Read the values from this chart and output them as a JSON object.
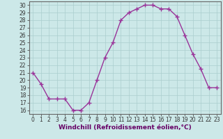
{
  "x": [
    0,
    1,
    2,
    3,
    4,
    5,
    6,
    7,
    8,
    9,
    10,
    11,
    12,
    13,
    14,
    15,
    16,
    17,
    18,
    19,
    20,
    21,
    22,
    23
  ],
  "y": [
    21,
    19.5,
    17.5,
    17.5,
    17.5,
    16,
    16,
    17,
    20,
    23,
    25,
    28,
    29,
    29.5,
    30,
    30,
    29.5,
    29.5,
    28.5,
    26,
    23.5,
    21.5,
    19,
    19
  ],
  "line_color": "#993399",
  "marker": "+",
  "marker_size": 4,
  "bg_color": "#cce8e8",
  "grid_color": "#aacece",
  "xlabel": "Windchill (Refroidissement éolien,°C)",
  "tick_fontsize": 5.5,
  "xlabel_fontsize": 6.5,
  "ylim": [
    15.5,
    30.5
  ],
  "xlim": [
    -0.5,
    23.5
  ],
  "yticks": [
    16,
    17,
    18,
    19,
    20,
    21,
    22,
    23,
    24,
    25,
    26,
    27,
    28,
    29,
    30
  ],
  "xticks": [
    0,
    1,
    2,
    3,
    4,
    5,
    6,
    7,
    8,
    9,
    10,
    11,
    12,
    13,
    14,
    15,
    16,
    17,
    18,
    19,
    20,
    21,
    22,
    23
  ]
}
